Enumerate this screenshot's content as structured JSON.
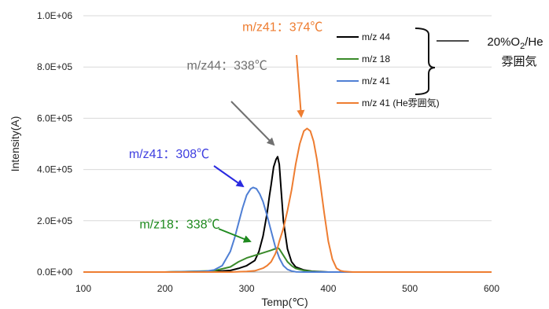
{
  "chart_data": {
    "type": "line",
    "xlabel": "Temp(℃)",
    "ylabel": "Intensity(A)",
    "xlim": [
      100,
      600
    ],
    "ylim": [
      0,
      1000000
    ],
    "x_ticks": [
      "100",
      "200",
      "300",
      "400",
      "500",
      "600"
    ],
    "y_ticks": [
      "0.0E+00",
      "2.0E+05",
      "4.0E+05",
      "6.0E+05",
      "8.0E+05",
      "1.0E+06"
    ],
    "grid": "horizontal",
    "legend_position": "top-right",
    "series": [
      {
        "name": "m/z 44",
        "color": "#000000",
        "x": [
          100,
          200,
          260,
          280,
          290,
          300,
          310,
          315,
          320,
          325,
          328,
          330,
          333,
          336,
          338,
          340,
          342,
          345,
          350,
          355,
          360,
          370,
          380,
          400,
          600
        ],
        "y": [
          0,
          0,
          2000,
          6000,
          14000,
          25000,
          45000,
          80000,
          140000,
          230000,
          300000,
          340000,
          410000,
          440000,
          450000,
          420000,
          330000,
          200000,
          90000,
          40000,
          20000,
          8000,
          3000,
          0,
          0
        ]
      },
      {
        "name": "m/z 18",
        "color": "#3a8a2a",
        "x": [
          100,
          200,
          260,
          280,
          290,
          300,
          310,
          320,
          330,
          336,
          338,
          340,
          345,
          350,
          355,
          360,
          370,
          380,
          390,
          400,
          600
        ],
        "y": [
          0,
          0,
          5000,
          20000,
          40000,
          55000,
          65000,
          75000,
          85000,
          92000,
          95000,
          90000,
          65000,
          40000,
          25000,
          14000,
          6000,
          2000,
          500,
          0,
          0
        ]
      },
      {
        "name": "m/z 41",
        "color": "#4f7fd4",
        "x": [
          100,
          200,
          250,
          260,
          270,
          280,
          285,
          290,
          295,
          300,
          305,
          308,
          312,
          316,
          320,
          325,
          330,
          335,
          340,
          345,
          350,
          355,
          360,
          370,
          600
        ],
        "y": [
          0,
          0,
          3000,
          8000,
          25000,
          80000,
          130000,
          190000,
          250000,
          300000,
          325000,
          330000,
          325000,
          305000,
          275000,
          220000,
          160000,
          100000,
          55000,
          25000,
          10000,
          4000,
          1000,
          0,
          0
        ]
      },
      {
        "name": "m/z 41 (He雰囲気)",
        "color": "#ee7d31",
        "x": [
          100,
          200,
          280,
          300,
          310,
          320,
          325,
          330,
          335,
          338,
          340,
          345,
          350,
          355,
          360,
          365,
          370,
          374,
          378,
          382,
          386,
          390,
          395,
          400,
          405,
          410,
          415,
          420,
          430,
          440,
          600
        ],
        "y": [
          0,
          0,
          0,
          2000,
          5000,
          15000,
          25000,
          40000,
          70000,
          95000,
          120000,
          170000,
          240000,
          320000,
          420000,
          500000,
          550000,
          560000,
          550000,
          510000,
          440000,
          350000,
          230000,
          120000,
          50000,
          15000,
          5000,
          2000,
          0,
          0,
          0
        ]
      }
    ],
    "annotations": [
      {
        "text": "m/z41：374℃",
        "color": "#ee7d31",
        "x": 344,
        "y": 940000
      },
      {
        "text": "m/z44：338℃",
        "color": "#707070",
        "x": 276,
        "y": 790000
      },
      {
        "text": "m/z41：308℃",
        "color": "#4040e0",
        "x": 205,
        "y": 445000
      },
      {
        "text": "m/z18：338℃",
        "color": "#1f8a1f",
        "x": 218,
        "y": 170000
      }
    ],
    "bracket_label": "20%O₂/He\n雰囲気"
  },
  "bracket_lines": [
    "20%O",
    "2",
    "/He",
    "雰囲気"
  ]
}
